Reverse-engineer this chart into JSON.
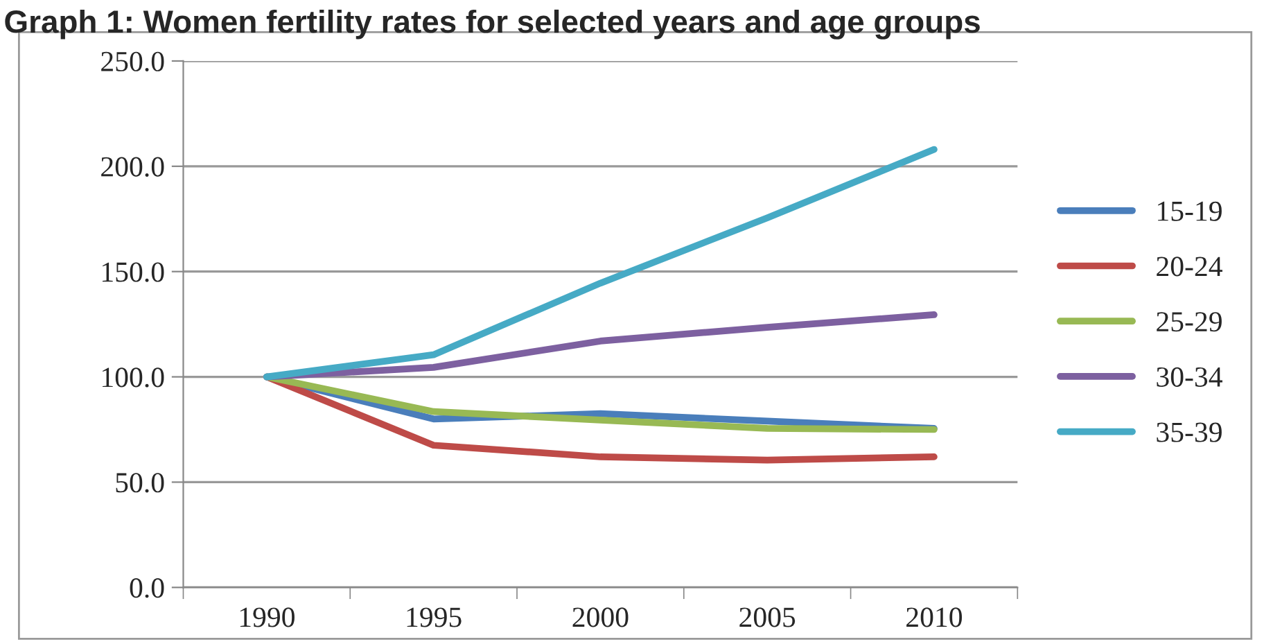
{
  "chart_data": {
    "type": "line",
    "title": "Graph 1: Women fertility rates for selected years and age groups",
    "categories": [
      "1990",
      "1995",
      "2000",
      "2005",
      "2010"
    ],
    "series": [
      {
        "name": "15-19",
        "color": "#4a7ebb",
        "values": [
          100,
          80,
          82.5,
          79,
          75.5
        ]
      },
      {
        "name": "20-24",
        "color": "#be4b48",
        "values": [
          100,
          67.5,
          62,
          60.5,
          62
        ]
      },
      {
        "name": "25-29",
        "color": "#98b954",
        "values": [
          100,
          83.5,
          79.5,
          75.5,
          75
        ]
      },
      {
        "name": "30-34",
        "color": "#7d60a0",
        "values": [
          100,
          104.5,
          117,
          123.5,
          129.5
        ]
      },
      {
        "name": "35-39",
        "color": "#46aac5",
        "values": [
          100,
          110.5,
          144.5,
          175.5,
          208
        ]
      }
    ],
    "ylim": [
      0,
      250
    ],
    "yticks": [
      {
        "value": 0,
        "label": "0.0"
      },
      {
        "value": 50,
        "label": "50.0"
      },
      {
        "value": 100,
        "label": "100.0"
      },
      {
        "value": 150,
        "label": "150.0"
      },
      {
        "value": 200,
        "label": "200.0"
      },
      {
        "value": 250,
        "label": "250.0"
      }
    ],
    "grid": "y",
    "legend": "right",
    "marker": "none",
    "line_style": "solid"
  }
}
